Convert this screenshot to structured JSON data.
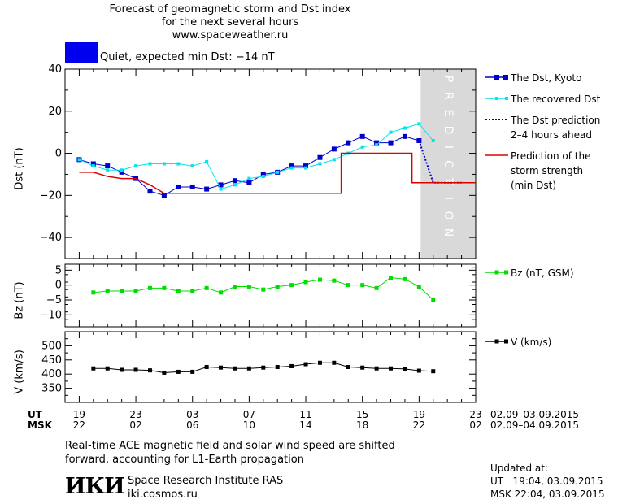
{
  "header": {
    "title_line1": "Forecast of geomagnetic storm and Dst index",
    "title_line2": "for the next several hours",
    "site": "www.spaceweather.ru"
  },
  "status": {
    "color": "#0000ee",
    "text": "Quiet, expected min Dst: −14 nT"
  },
  "colors": {
    "dst": "#0000cc",
    "recovered": "#00e5ee",
    "prediction_dots": "#0000cc",
    "storm_strength": "#dd0000",
    "bz": "#00dd00",
    "v": "#000000",
    "prediction_band": "#d9d9d9"
  },
  "chart_data": [
    {
      "type": "line",
      "ylabel": "Dst (nT)",
      "ylim": [
        -50,
        40
      ],
      "yticks": [
        40,
        20,
        0,
        -20,
        -40
      ],
      "prediction_label": "PREDICTION",
      "series": [
        {
          "name": "The Dst, Kyoto",
          "x": [
            19,
            20,
            21,
            22,
            23,
            24,
            25,
            26,
            27,
            28,
            29,
            30,
            31,
            32,
            33,
            34,
            35,
            36,
            37,
            38,
            39,
            40,
            41,
            42,
            43
          ],
          "values": [
            -3,
            -5,
            -6,
            -9,
            -12,
            -18,
            -20,
            -16,
            -16,
            -17,
            -15,
            -13,
            -14,
            -10,
            -9,
            -6,
            -6,
            -2,
            2,
            5,
            8,
            5,
            5,
            8,
            6
          ]
        },
        {
          "name": "The recovered Dst",
          "x": [
            19,
            20,
            21,
            22,
            23,
            24,
            25,
            26,
            27,
            28,
            29,
            30,
            31,
            32,
            33,
            34,
            35,
            36,
            37,
            38,
            39,
            40,
            41,
            42,
            43,
            44
          ],
          "values": [
            -3,
            -6,
            -8,
            -8,
            -6,
            -5,
            -5,
            -5,
            -6,
            -4,
            -17,
            -15,
            -12,
            -11,
            -9,
            -7,
            -7,
            -5,
            -3,
            0,
            3,
            4,
            10,
            12,
            14,
            6
          ]
        },
        {
          "name": "The Dst prediction\n2–4 hours ahead",
          "x": [
            43,
            44,
            45,
            46
          ],
          "values": [
            6,
            -14,
            -14,
            -14
          ]
        },
        {
          "name": "Prediction of the\nstorm strength\n(min Dst)",
          "x": [
            19,
            20,
            21,
            22,
            23,
            24,
            25,
            26,
            27,
            28,
            29,
            30,
            31,
            32,
            33,
            34,
            35,
            36,
            37,
            38,
            39,
            40,
            41,
            42,
            43,
            44,
            45,
            46
          ],
          "values": [
            -9,
            -9,
            -11,
            -12,
            -12,
            -15,
            -19,
            -19,
            -19,
            -19,
            -19,
            -19,
            -19,
            -19,
            -19,
            -19,
            -19,
            -19,
            -19,
            0,
            0,
            0,
            0,
            0,
            -14,
            -14,
            -14,
            -14
          ]
        }
      ],
      "prediction_band_x": [
        43,
        47
      ]
    },
    {
      "type": "line",
      "ylabel": "Bz (nT)",
      "ylim": [
        -14,
        7
      ],
      "yticks": [
        5,
        0,
        -5,
        -10
      ],
      "series": [
        {
          "name": "Bz (nT, GSM)",
          "x": [
            20,
            21,
            22,
            23,
            24,
            25,
            26,
            27,
            28,
            29,
            30,
            31,
            32,
            33,
            34,
            35,
            36,
            37,
            38,
            39,
            40,
            41,
            42,
            43,
            44
          ],
          "values": [
            -2.5,
            -2,
            -2,
            -2,
            -1,
            -1,
            -2,
            -2,
            -1,
            -2.5,
            -0.5,
            -0.5,
            -1.5,
            -0.5,
            0,
            1,
            1.8,
            1.5,
            0,
            0,
            -1,
            2.5,
            2,
            -0.5,
            -5
          ]
        }
      ]
    },
    {
      "type": "line",
      "ylabel": "V (km/s)",
      "ylim": [
        300,
        550
      ],
      "yticks": [
        500,
        450,
        400,
        350
      ],
      "series": [
        {
          "name": "V (km/s)",
          "x": [
            20,
            21,
            22,
            23,
            24,
            25,
            26,
            27,
            28,
            29,
            30,
            31,
            32,
            33,
            34,
            35,
            36,
            37,
            38,
            39,
            40,
            41,
            42,
            43,
            44
          ],
          "values": [
            420,
            420,
            415,
            415,
            413,
            405,
            408,
            408,
            425,
            423,
            420,
            420,
            423,
            425,
            428,
            435,
            440,
            440,
            425,
            423,
            420,
            420,
            418,
            412,
            410
          ]
        }
      ]
    }
  ],
  "axis": {
    "ut_label": "UT",
    "msk_label": "MSK",
    "ut_ticks": [
      "19",
      "23",
      "03",
      "07",
      "11",
      "15",
      "19",
      "23"
    ],
    "msk_ticks": [
      "22",
      "02",
      "06",
      "10",
      "14",
      "18",
      "22",
      "02"
    ],
    "ut_range": "02.09–03.09.2015",
    "msk_range": "02.09–04.09.2015"
  },
  "footer": {
    "note_line1": "Real-time ACE magnetic field and solar wind speed are shifted",
    "note_line2": "forward, accounting for L1-Earth propagation",
    "logo": "ИКИ",
    "institute": "Space Research Institute RAS",
    "url": "iki.cosmos.ru",
    "updated_label": "Updated at:",
    "updated_ut": "UT   19:04, 03.09.2015",
    "updated_msk": "MSK 22:04, 03.09.2015"
  }
}
